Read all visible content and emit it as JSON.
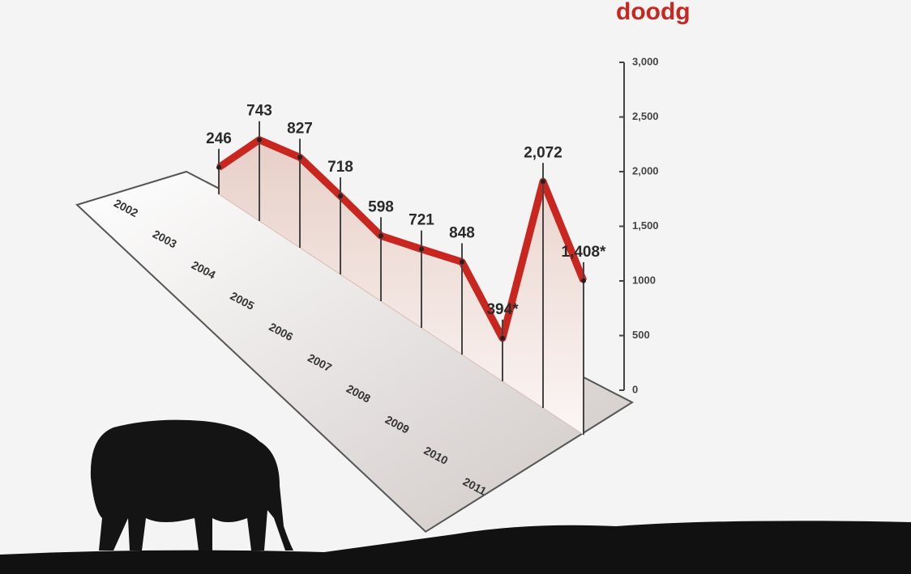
{
  "chart_data": {
    "type": "area3d",
    "title": "doodg",
    "categories": [
      "2002",
      "2003",
      "2004",
      "2005",
      "2006",
      "2007",
      "2008",
      "2009",
      "2010",
      "2011"
    ],
    "values": [
      246,
      743,
      827,
      718,
      598,
      721,
      848,
      394,
      2072,
      1408
    ],
    "value_labels": [
      "246",
      "743",
      "827",
      "718",
      "598",
      "721",
      "848",
      "394*",
      "2,072",
      "1,408*"
    ],
    "color": "#c8261e",
    "ylim": [
      0,
      3000
    ],
    "yticks": [
      0,
      500,
      1000,
      {
        "value": 1500,
        "label": "1,500"
      },
      {
        "value": 2000,
        "label": "2,000"
      },
      {
        "value": 2500,
        "label": "2,500"
      },
      {
        "value": 3000,
        "label": "3,000"
      }
    ]
  }
}
